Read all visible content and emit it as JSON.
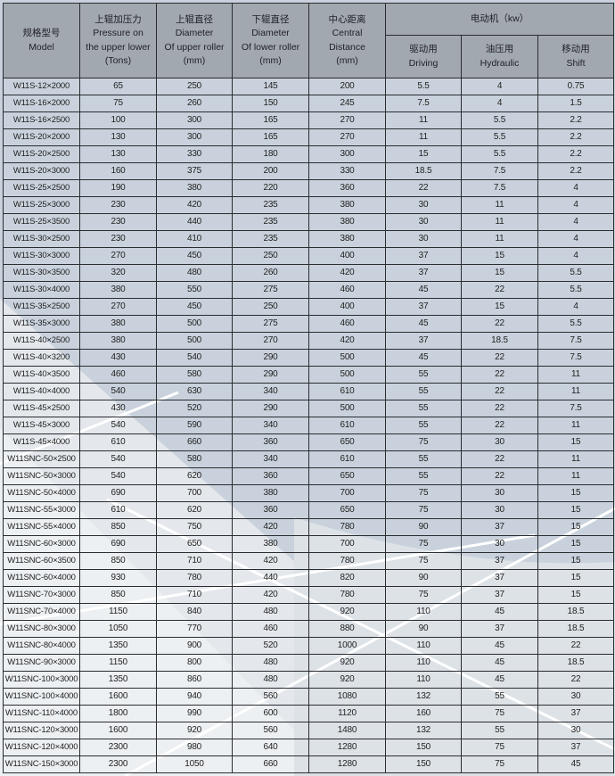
{
  "header": {
    "model": [
      "规格型号",
      "Model"
    ],
    "pressure": [
      "上辊加压力",
      "Pressure on",
      "the upper lower",
      "(Tons)"
    ],
    "upper": [
      "上辊直径",
      "Diameter",
      "Of upper roller",
      "(mm)"
    ],
    "lower": [
      "下辊直径",
      "Diameter",
      "Of lower roller",
      "(mm)"
    ],
    "center": [
      "中心距离",
      "Central",
      "Distance",
      "(mm)"
    ],
    "motor": "电动机（kw）",
    "driving": [
      "驱动用",
      "Driving"
    ],
    "hydraulic": [
      "油压用",
      "Hydraulic"
    ],
    "shift": [
      "移动用",
      "Shift"
    ]
  },
  "colors": {
    "header_bg": "#a2a8b0",
    "row_bg": "#c9d2dc",
    "highlight": "#e8ebee"
  },
  "rows": [
    [
      "W11S-12×2000",
      "65",
      "250",
      "145",
      "200",
      "5.5",
      "4",
      "0.75"
    ],
    [
      "W11S-16×2000",
      "75",
      "260",
      "150",
      "245",
      "7.5",
      "4",
      "1.5"
    ],
    [
      "W11S-16×2500",
      "100",
      "300",
      "165",
      "270",
      "11",
      "5.5",
      "2.2"
    ],
    [
      "W11S-20×2000",
      "130",
      "300",
      "165",
      "270",
      "11",
      "5.5",
      "2.2"
    ],
    [
      "W11S-20×2500",
      "130",
      "330",
      "180",
      "300",
      "15",
      "5.5",
      "2.2"
    ],
    [
      "W11S-20×3000",
      "160",
      "375",
      "200",
      "330",
      "18.5",
      "7.5",
      "2.2"
    ],
    [
      "W11S-25×2500",
      "190",
      "380",
      "220",
      "360",
      "22",
      "7.5",
      "4"
    ],
    [
      "W11S-25×3000",
      "230",
      "420",
      "235",
      "380",
      "30",
      "11",
      "4"
    ],
    [
      "W11S-25×3500",
      "230",
      "440",
      "235",
      "380",
      "30",
      "11",
      "4"
    ],
    [
      "W11S-30×2500",
      "230",
      "410",
      "235",
      "380",
      "30",
      "11",
      "4"
    ],
    [
      "W11S-30×3000",
      "270",
      "450",
      "250",
      "400",
      "37",
      "15",
      "4"
    ],
    [
      "W11S-30×3500",
      "320",
      "480",
      "260",
      "420",
      "37",
      "15",
      "5.5"
    ],
    [
      "W11S-30×4000",
      "380",
      "550",
      "275",
      "460",
      "45",
      "22",
      "5.5"
    ],
    [
      "W11S-35×2500",
      "270",
      "450",
      "250",
      "400",
      "37",
      "15",
      "4"
    ],
    [
      "W11S-35×3000",
      "380",
      "500",
      "275",
      "460",
      "45",
      "22",
      "5.5"
    ],
    [
      "W11S-40×2500",
      "380",
      "500",
      "270",
      "420",
      "37",
      "18.5",
      "7.5"
    ],
    [
      "W11S-40×3200",
      "430",
      "540",
      "290",
      "500",
      "45",
      "22",
      "7.5"
    ],
    [
      "W11S-40×3500",
      "460",
      "580",
      "290",
      "500",
      "55",
      "22",
      "11"
    ],
    [
      "W11S-40×4000",
      "540",
      "630",
      "340",
      "610",
      "55",
      "22",
      "11"
    ],
    [
      "W11S-45×2500",
      "430",
      "520",
      "290",
      "500",
      "55",
      "22",
      "7.5"
    ],
    [
      "W11S-45×3000",
      "540",
      "590",
      "340",
      "610",
      "55",
      "22",
      "11"
    ],
    [
      "W11S-45×4000",
      "610",
      "660",
      "360",
      "650",
      "75",
      "30",
      "15"
    ],
    [
      "W11SNC-50×2500",
      "540",
      "580",
      "340",
      "610",
      "55",
      "22",
      "11"
    ],
    [
      "W11SNC-50×3000",
      "540",
      "620",
      "360",
      "650",
      "55",
      "22",
      "11"
    ],
    [
      "W11SNC-50×4000",
      "690",
      "700",
      "380",
      "700",
      "75",
      "30",
      "15"
    ],
    [
      "W11SNC-55×3000",
      "610",
      "620",
      "360",
      "650",
      "75",
      "30",
      "15"
    ],
    [
      "W11SNC-55×4000",
      "850",
      "750",
      "420",
      "780",
      "90",
      "37",
      "15"
    ],
    [
      "W11SNC-60×3000",
      "690",
      "650",
      "380",
      "700",
      "75",
      "30",
      "15"
    ],
    [
      "W11SNC-60×3500",
      "850",
      "710",
      "420",
      "780",
      "75",
      "37",
      "15"
    ],
    [
      "W11SNC-60×4000",
      "930",
      "780",
      "440",
      "820",
      "90",
      "37",
      "15"
    ],
    [
      "W11SNC-70×3000",
      "850",
      "710",
      "420",
      "780",
      "75",
      "37",
      "15"
    ],
    [
      "W11SNC-70×4000",
      "1150",
      "840",
      "480",
      "920",
      "110",
      "45",
      "18.5"
    ],
    [
      "W11SNC-80×3000",
      "1050",
      "770",
      "460",
      "880",
      "90",
      "37",
      "18.5"
    ],
    [
      "W11SNC-80×4000",
      "1350",
      "900",
      "520",
      "1000",
      "110",
      "45",
      "22"
    ],
    [
      "W11SNC-90×3000",
      "1150",
      "800",
      "480",
      "920",
      "110",
      "45",
      "18.5"
    ],
    [
      "W11SNC-100×3000",
      "1350",
      "860",
      "480",
      "920",
      "110",
      "45",
      "22"
    ],
    [
      "W11SNC-100×4000",
      "1600",
      "940",
      "560",
      "1080",
      "132",
      "55",
      "30"
    ],
    [
      "W11SNC-110×4000",
      "1800",
      "990",
      "600",
      "1120",
      "160",
      "75",
      "37"
    ],
    [
      "W11SNC-120×3000",
      "1600",
      "920",
      "560",
      "1480",
      "132",
      "55",
      "30"
    ],
    [
      "W11SNC-120×4000",
      "2300",
      "980",
      "640",
      "1280",
      "150",
      "75",
      "37"
    ],
    [
      "W11SNC-150×3000",
      "2300",
      "1050",
      "660",
      "1280",
      "150",
      "75",
      "45"
    ]
  ]
}
